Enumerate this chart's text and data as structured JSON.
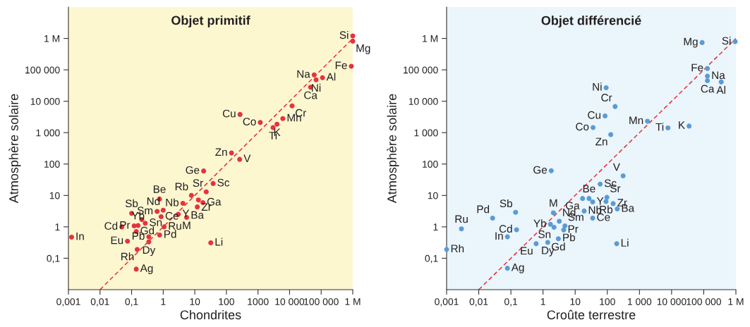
{
  "chart_data": [
    {
      "type": "scatter",
      "title": "Objet primitif",
      "xlabel": "Chondrites",
      "ylabel": "Atmosphère solaire",
      "log": "xy",
      "xlim": [
        0.001,
        1000000
      ],
      "ylim": [
        0.01,
        10000000
      ],
      "xticks": [
        {
          "value": 0.001,
          "label": "0,001"
        },
        {
          "value": 0.01,
          "label": "0,01"
        },
        {
          "value": 0.1,
          "label": "0,1"
        },
        1,
        10,
        100,
        1000,
        {
          "value": 10000,
          "label": "10 000"
        },
        {
          "value": 100000,
          "label": "100 000"
        },
        {
          "value": 1000000,
          "label": "1 M"
        }
      ],
      "yticks": [
        {
          "value": 0.1,
          "label": "0,1"
        },
        1,
        10,
        100,
        {
          "value": 1000,
          "label": "1 000"
        },
        {
          "value": 10000,
          "label": "10 000"
        },
        {
          "value": 100000,
          "label": "100 000"
        },
        {
          "value": 1000000,
          "label": "1 M"
        }
      ],
      "series": [
        {
          "color": "#e5333f",
          "marker": "circle",
          "x": [
            1000000,
            1000000,
            900000,
            60000,
            110000,
            69000,
            46000,
            12000,
            6100,
            4000,
            3000,
            1180,
            270,
            145,
            263,
            19,
            38,
            23,
            7.8,
            18,
            13,
            12,
            3,
            5.5,
            4.2,
            0.76,
            1.0,
            0.64,
            0.86,
            1.07,
            0.77,
            0.35,
            0.35,
            0.14,
            0.074,
            0.15,
            0.049,
            0.00126,
            0.14,
            32,
            0.1,
            0.12,
            0.16,
            0.27,
            0.21
          ],
          "values": [
            1200000,
            820000,
            130000,
            69000,
            56000,
            48000,
            28000,
            7100,
            2800,
            1850,
            1450,
            2100,
            3800,
            225,
            141,
            60,
            24,
            13,
            10,
            5.9,
            7.2,
            4.3,
            2.5,
            2.0,
            5.6,
            7.7,
            3.4,
            3.1,
            2.1,
            1.0,
            0.55,
            0.33,
            0.48,
            0.71,
            0.35,
            0.19,
            1.0,
            0.47,
            0.045,
            0.31,
            2.7,
            1.07,
            1.1,
            1.3,
            1.7
          ]
        },
        {
          "type": "line",
          "color": "#e8303a",
          "line_style": "dashed",
          "x": [
            0.01,
            1000000
          ],
          "values": [
            0.01,
            1000000
          ]
        }
      ],
      "annotations": [
        {
          "text": "Si",
          "x": 1000000,
          "y": 1200000
        },
        {
          "text": "Mg",
          "x": 1000000,
          "y": 820000
        },
        {
          "text": "Fe",
          "x": 900000,
          "y": 130000
        },
        {
          "text": "Na",
          "x": 60000,
          "y": 69000
        },
        {
          "text": "Al",
          "x": 110000,
          "y": 56000
        },
        {
          "text": "Ni",
          "x": 69000,
          "y": 48000
        },
        {
          "text": "Ca",
          "x": 46000,
          "y": 28000
        },
        {
          "text": "Cr",
          "x": 12000,
          "y": 7100
        },
        {
          "text": "Mn",
          "x": 6100,
          "y": 2800
        },
        {
          "text": "K",
          "x": 4000,
          "y": 1850
        },
        {
          "text": "Ti",
          "x": 3000,
          "y": 1450
        },
        {
          "text": "Co",
          "x": 1180,
          "y": 2100
        },
        {
          "text": "Cu",
          "x": 270,
          "y": 3800
        },
        {
          "text": "Zn",
          "x": 145,
          "y": 225
        },
        {
          "text": "V",
          "x": 263,
          "y": 141
        },
        {
          "text": "Ge",
          "x": 19,
          "y": 60
        },
        {
          "text": "Sc",
          "x": 38,
          "y": 24
        },
        {
          "text": "Sr",
          "x": 23,
          "y": 13
        },
        {
          "text": "Rb",
          "x": 7.8,
          "y": 10
        },
        {
          "text": "Ga",
          "x": 18,
          "y": 5.9
        },
        {
          "text": "Zr",
          "x": 13,
          "y": 7.2
        },
        {
          "text": "Ba",
          "x": 12,
          "y": 4.3
        },
        {
          "text": "Y",
          "x": 3,
          "y": 2.5
        },
        {
          "text": "M",
          "x": 5.5,
          "y": 2.0
        },
        {
          "text": "Nb",
          "x": 4.2,
          "y": 5.6
        },
        {
          "text": "Be",
          "x": 0.76,
          "y": 7.7
        },
        {
          "text": "Nd",
          "x": 1.0,
          "y": 3.4
        },
        {
          "text": "Sm",
          "x": 0.64,
          "y": 3.1
        },
        {
          "text": "Ce",
          "x": 0.86,
          "y": 2.1
        },
        {
          "text": "Ru",
          "x": 1.07,
          "y": 1.0
        },
        {
          "text": "Pd",
          "x": 0.77,
          "y": 0.55
        },
        {
          "text": "Dy",
          "x": 0.35,
          "y": 0.33
        },
        {
          "text": "Pb",
          "x": 0.35,
          "y": 0.48
        },
        {
          "text": "Gd",
          "x": 0.14,
          "y": 0.71
        },
        {
          "text": "Eu",
          "x": 0.074,
          "y": 0.35
        },
        {
          "text": "Rh",
          "x": 0.15,
          "y": 0.19
        },
        {
          "text": "Cd",
          "x": 0.049,
          "y": 1.0
        },
        {
          "text": "In",
          "x": 0.00126,
          "y": 0.47
        },
        {
          "text": "Ag",
          "x": 0.14,
          "y": 0.045
        },
        {
          "text": "Li",
          "x": 32,
          "y": 0.31
        },
        {
          "text": "Sb",
          "x": 0.1,
          "y": 2.7
        },
        {
          "text": "Pr",
          "x": 0.12,
          "y": 1.07
        },
        {
          "text": "Yb",
          "x": 0.16,
          "y": 1.1
        },
        {
          "text": "Sn",
          "x": 0.27,
          "y": 1.3
        }
      ]
    },
    {
      "type": "scatter",
      "title": "Objet différencié",
      "xlabel": "Croûte terrestre",
      "ylabel": "Atmosphère solaire",
      "log": "xy",
      "xlim": [
        0.001,
        1000000
      ],
      "ylim": [
        0.01,
        10000000
      ],
      "xticks": [
        {
          "value": 0.001,
          "label": "0,001"
        },
        {
          "value": 0.01,
          "label": "0,01"
        },
        {
          "value": 0.1,
          "label": "0,1"
        },
        1,
        10,
        100,
        {
          "value": 1000,
          "label": "1 000"
        },
        {
          "value": 10000,
          "label": "10 000"
        },
        {
          "value": 100000,
          "label": "100 000"
        },
        {
          "value": 1000000,
          "label": "1 M"
        }
      ],
      "yticks": [
        {
          "value": 0.1,
          "label": "0,1"
        },
        1,
        10,
        100,
        {
          "value": 1000,
          "label": "1 000"
        },
        {
          "value": 10000,
          "label": "10 000"
        },
        {
          "value": 100000,
          "label": "100 000"
        },
        {
          "value": 1000000,
          "label": "1 M"
        }
      ],
      "series": [
        {
          "color": "#5b9bd5",
          "marker": "circle",
          "x": [
            89000,
            950000,
            130000,
            130000,
            130000,
            350000,
            92,
            175,
            85,
            36,
            128,
            1780,
            7700,
            35000,
            1.8,
            310,
            60,
            17,
            27,
            35,
            97,
            91,
            152,
            204,
            19,
            35,
            2.1,
            1.7,
            3.2,
            4.8,
            4.4,
            2.2,
            3.0,
            1.4,
            0.61,
            196,
            0.0029,
            0.027,
            0.14,
            0.15,
            0.078,
            0.001,
            0.078
          ],
          "values": [
            740000,
            790000,
            110000,
            63000,
            45000,
            41000,
            27000,
            6800,
            3400,
            1450,
            870,
            2300,
            1420,
            1620,
            61,
            42,
            23,
            8,
            8,
            6.2,
            8.7,
            6.4,
            5.5,
            3.7,
            3.2,
            1.9,
            2.8,
            1.2,
            1.5,
            1.07,
            0.8,
            0.97,
            0.42,
            0.32,
            0.29,
            0.29,
            0.86,
            1.9,
            2.9,
            0.81,
            0.48,
            0.19,
            0.048
          ]
        },
        {
          "type": "line",
          "color": "#e8303a",
          "line_style": "dashed",
          "x": [
            0.01,
            1000000
          ],
          "values": [
            0.01,
            1000000
          ]
        }
      ],
      "annotations": [
        {
          "text": "Mg",
          "x": 89000,
          "y": 740000
        },
        {
          "text": "Si",
          "x": 950000,
          "y": 790000
        },
        {
          "text": "Fe",
          "x": 130000,
          "y": 110000
        },
        {
          "text": "Na",
          "x": 130000,
          "y": 63000
        },
        {
          "text": "Ca",
          "x": 130000,
          "y": 45000
        },
        {
          "text": "Al",
          "x": 350000,
          "y": 41000
        },
        {
          "text": "Ni",
          "x": 92,
          "y": 27000
        },
        {
          "text": "Cr",
          "x": 175,
          "y": 6800
        },
        {
          "text": "Cu",
          "x": 85,
          "y": 3400
        },
        {
          "text": "Co",
          "x": 36,
          "y": 1450
        },
        {
          "text": "Zn",
          "x": 128,
          "y": 870
        },
        {
          "text": "Mn",
          "x": 1780,
          "y": 2300
        },
        {
          "text": "Ti",
          "x": 7700,
          "y": 1420
        },
        {
          "text": "K",
          "x": 35000,
          "y": 1620
        },
        {
          "text": "Ge",
          "x": 1.8,
          "y": 61
        },
        {
          "text": "V",
          "x": 310,
          "y": 42
        },
        {
          "text": "Sc",
          "x": 60,
          "y": 23
        },
        {
          "text": "Ga",
          "x": 17,
          "y": 8
        },
        {
          "text": "Be",
          "x": 27,
          "y": 8
        },
        {
          "text": "Y",
          "x": 35,
          "y": 6.2
        },
        {
          "text": "Sr",
          "x": 97,
          "y": 8.7
        },
        {
          "text": "Rb",
          "x": 91,
          "y": 6.4
        },
        {
          "text": "Zr",
          "x": 152,
          "y": 5.5
        },
        {
          "text": "Ba",
          "x": 204,
          "y": 3.7
        },
        {
          "text": "Nb",
          "x": 19,
          "y": 3.2
        },
        {
          "text": "Ce",
          "x": 35,
          "y": 1.9
        },
        {
          "text": "M",
          "x": 2.1,
          "y": 2.8
        },
        {
          "text": "Yb",
          "x": 1.7,
          "y": 1.2
        },
        {
          "text": "Nd",
          "x": 3.2,
          "y": 1.5
        },
        {
          "text": "Sm",
          "x": 4.8,
          "y": 1.07
        },
        {
          "text": "Pr",
          "x": 4.4,
          "y": 0.8
        },
        {
          "text": "Sn",
          "x": 2.2,
          "y": 0.97
        },
        {
          "text": "Pb",
          "x": 3.0,
          "y": 0.43
        },
        {
          "text": "Gd",
          "x": 3.0,
          "y": 0.42
        },
        {
          "text": "Dy",
          "x": 1.4,
          "y": 0.32
        },
        {
          "text": "Eu",
          "x": 0.61,
          "y": 0.29
        },
        {
          "text": "Li",
          "x": 196,
          "y": 0.29
        },
        {
          "text": "Ru",
          "x": 0.0029,
          "y": 0.86
        },
        {
          "text": "Pd",
          "x": 0.027,
          "y": 1.9
        },
        {
          "text": "Sb",
          "x": 0.14,
          "y": 2.9
        },
        {
          "text": "Cd",
          "x": 0.15,
          "y": 0.81
        },
        {
          "text": "In",
          "x": 0.078,
          "y": 0.48
        },
        {
          "text": "Rh",
          "x": 0.001,
          "y": 0.19
        },
        {
          "text": "Ag",
          "x": 0.078,
          "y": 0.048
        }
      ]
    }
  ]
}
